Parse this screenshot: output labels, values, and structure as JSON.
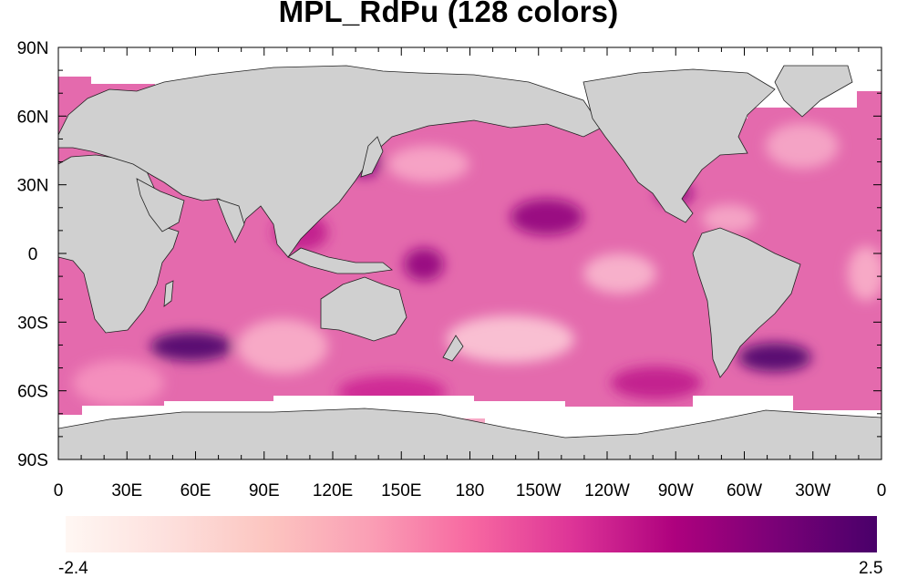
{
  "title": "MPL_RdPu (128 colors)",
  "map": {
    "lat_tick_labels": [
      "90N",
      "60N",
      "30N",
      "0",
      "30S",
      "60S",
      "90S"
    ],
    "lon_tick_labels": [
      "0",
      "30E",
      "60E",
      "90E",
      "120E",
      "150E",
      "180",
      "150W",
      "120W",
      "90W",
      "60W",
      "30W",
      "0"
    ],
    "land_color": "#d0d0d0",
    "no_data_color": "#ffffff",
    "projection": "cylindrical equidistant, 0 to 360 longitude"
  },
  "colorbar": {
    "min_label": "-2.4",
    "max_label": "2.5",
    "colors": [
      "#fff7f3",
      "#fde0dd",
      "#fcc5c0",
      "#fa9fb5",
      "#f768a1",
      "#dd3497",
      "#ae017e",
      "#7a0177",
      "#49006a"
    ]
  }
}
